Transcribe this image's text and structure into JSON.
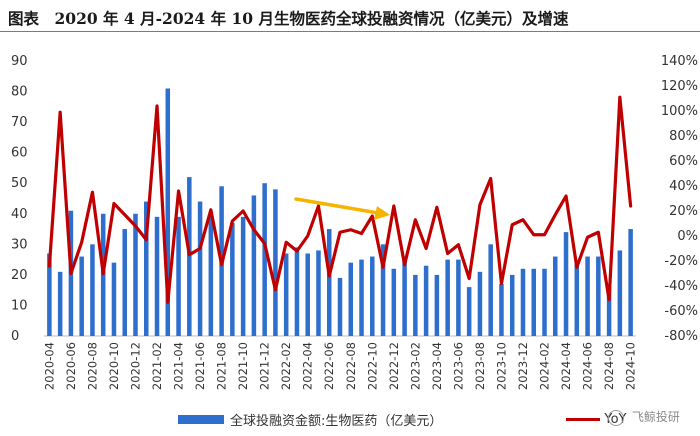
{
  "title": "图表　2020 年 4 月-2024 年 10 月生物医药全球投融资情况（亿美元）及增速",
  "chart_data": {
    "type": "bar",
    "y_left": {
      "min": 0,
      "max": 90,
      "ticks": [
        "0",
        "10",
        "20",
        "30",
        "40",
        "50",
        "60",
        "70",
        "80",
        "90"
      ]
    },
    "y_right": {
      "min": -80,
      "max": 140,
      "ticks": [
        "-80%",
        "-60%",
        "-40%",
        "-20%",
        "0%",
        "20%",
        "40%",
        "60%",
        "80%",
        "100%",
        "120%",
        "140%"
      ]
    },
    "x_tick_labels": [
      "2020-04",
      "2020-06",
      "2020-08",
      "2020-10",
      "2020-12",
      "2021-02",
      "2021-04",
      "2021-06",
      "2021-08",
      "2021-10",
      "2021-12",
      "2022-02",
      "2022-04",
      "2022-06",
      "2022-08",
      "2022-10",
      "2022-12",
      "2023-02",
      "2023-04",
      "2023-06",
      "2023-08",
      "2023-10",
      "2023-12",
      "2024-02",
      "2024-04",
      "2024-06",
      "2024-08",
      "2024-10"
    ],
    "series": [
      {
        "name": "全球投融资金额:生物医药（亿美元）",
        "type": "bar",
        "color": "#2e6fcd",
        "axis": "left",
        "values": [
          27,
          21,
          41,
          26,
          30,
          40,
          24,
          35,
          40,
          44,
          39,
          81,
          39,
          52,
          44,
          39,
          49,
          37,
          39,
          46,
          50,
          48,
          27,
          29,
          27,
          28,
          35,
          19,
          24,
          25,
          26,
          30,
          22,
          26,
          20,
          23,
          20,
          25,
          25,
          16,
          21,
          30,
          17,
          20,
          22,
          22,
          22,
          26,
          34,
          24,
          26,
          26,
          16,
          28,
          35
        ]
      },
      {
        "name": "YoY",
        "type": "line",
        "color": "#c00000",
        "axis": "right",
        "values": [
          -24,
          99,
          -30,
          -5,
          35,
          -30,
          26,
          17,
          8,
          -3,
          104,
          -53,
          36,
          -15,
          -10,
          21,
          -23,
          12,
          20,
          5,
          -6,
          -43,
          -5,
          -12,
          0,
          24,
          -32,
          3,
          5,
          2,
          16,
          -25,
          24,
          -23,
          13,
          -10,
          23,
          -14,
          -7,
          -34,
          25,
          46,
          -38,
          9,
          13,
          1,
          1,
          17,
          32,
          -25,
          -1,
          3,
          -51,
          111,
          24
        ]
      }
    ],
    "annotation": {
      "type": "arrow",
      "color": "#f4b400"
    }
  },
  "legend": {
    "bar_label": "全球投融资金额:生物医药（亿美元）",
    "line_label": "YoY"
  },
  "watermark": {
    "text": "飞鲸投研"
  }
}
